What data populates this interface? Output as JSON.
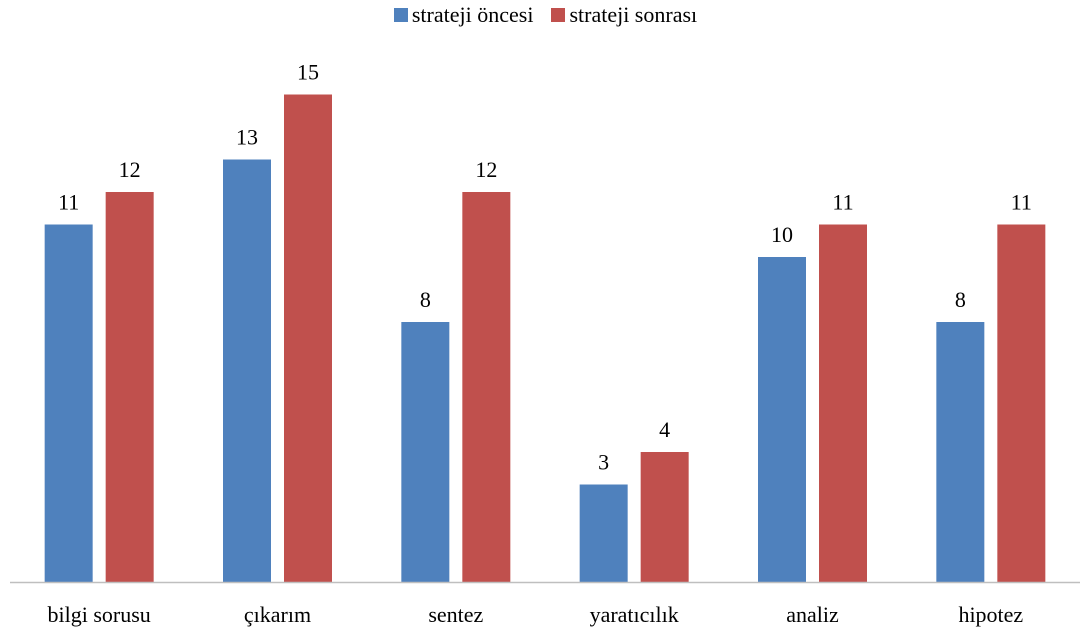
{
  "chart_data": {
    "type": "bar",
    "title": "",
    "xlabel": "",
    "ylabel": "",
    "categories": [
      "bilgi sorusu",
      "çıkarım",
      "sentez",
      "yaratıcılık",
      "analiz",
      "hipotez"
    ],
    "series": [
      {
        "name": "strateji öncesi",
        "color": "#4f81bd",
        "values": [
          11,
          13,
          8,
          3,
          10,
          8
        ]
      },
      {
        "name": "strateji sonrası",
        "color": "#c0504d",
        "values": [
          12,
          15,
          12,
          4,
          11,
          11
        ]
      }
    ],
    "ylim": [
      0,
      16
    ],
    "grid": false,
    "legend_position": "top",
    "data_labels": true
  }
}
